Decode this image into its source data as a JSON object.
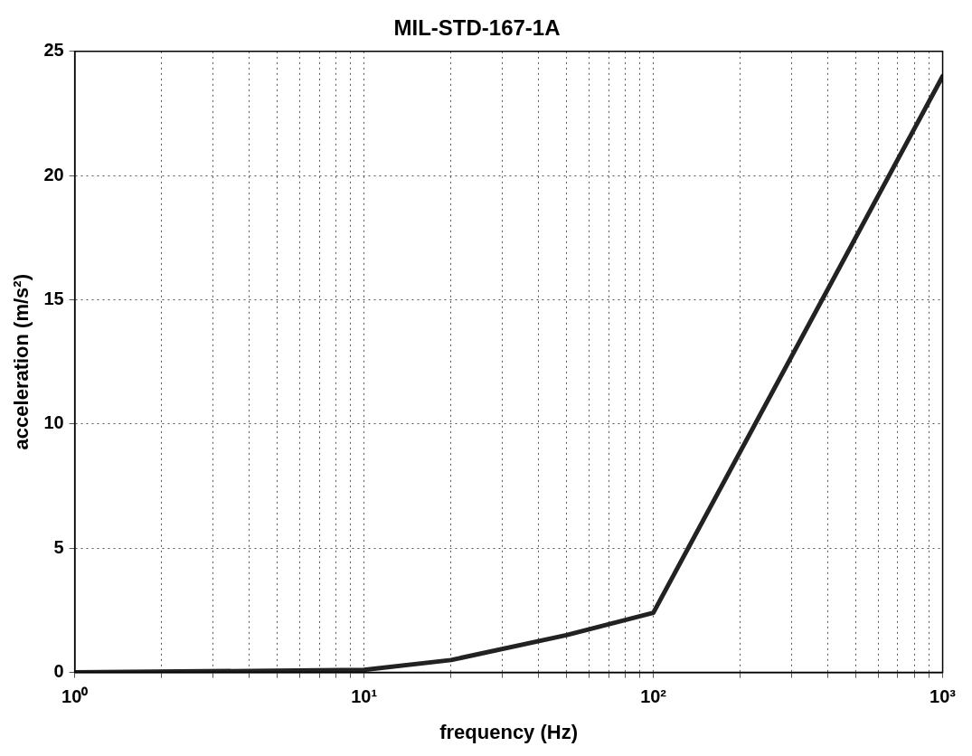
{
  "chart_data": {
    "type": "line",
    "title": "MIL-STD-167-1A",
    "xlabel": "frequency (Hz)",
    "ylabel": "acceleration (m/s²)",
    "log": "x",
    "grid": true,
    "line_style": "solid",
    "marker": "none",
    "legend": false,
    "xlim": [
      1,
      1000
    ],
    "ylim": [
      0,
      25
    ],
    "xticks": [
      {
        "value": 1,
        "label": "10⁰"
      },
      {
        "value": 2,
        "label": null
      },
      {
        "value": 3,
        "label": null
      },
      {
        "value": 4,
        "label": null
      },
      {
        "value": 5,
        "label": null
      },
      {
        "value": 6,
        "label": null
      },
      {
        "value": 7,
        "label": null
      },
      {
        "value": 8,
        "label": null
      },
      {
        "value": 9,
        "label": null
      },
      {
        "value": 10,
        "label": "10¹"
      },
      {
        "value": 20,
        "label": null
      },
      {
        "value": 30,
        "label": null
      },
      {
        "value": 40,
        "label": null
      },
      {
        "value": 50,
        "label": null
      },
      {
        "value": 60,
        "label": null
      },
      {
        "value": 70,
        "label": null
      },
      {
        "value": 80,
        "label": null
      },
      {
        "value": 90,
        "label": null
      },
      {
        "value": 100,
        "label": "10²"
      },
      {
        "value": 200,
        "label": null
      },
      {
        "value": 300,
        "label": null
      },
      {
        "value": 400,
        "label": null
      },
      {
        "value": 500,
        "label": null
      },
      {
        "value": 600,
        "label": null
      },
      {
        "value": 700,
        "label": null
      },
      {
        "value": 800,
        "label": null
      },
      {
        "value": 900,
        "label": null
      },
      {
        "value": 1000,
        "label": "10³"
      }
    ],
    "yticks": [
      0,
      5,
      10,
      15,
      20,
      25
    ],
    "series": [
      {
        "color": "#222222",
        "x": [
          1,
          10,
          20,
          50,
          100,
          1000
        ],
        "values": [
          0,
          0.1,
          0.5,
          1.5,
          2.4,
          24
        ]
      }
    ]
  }
}
